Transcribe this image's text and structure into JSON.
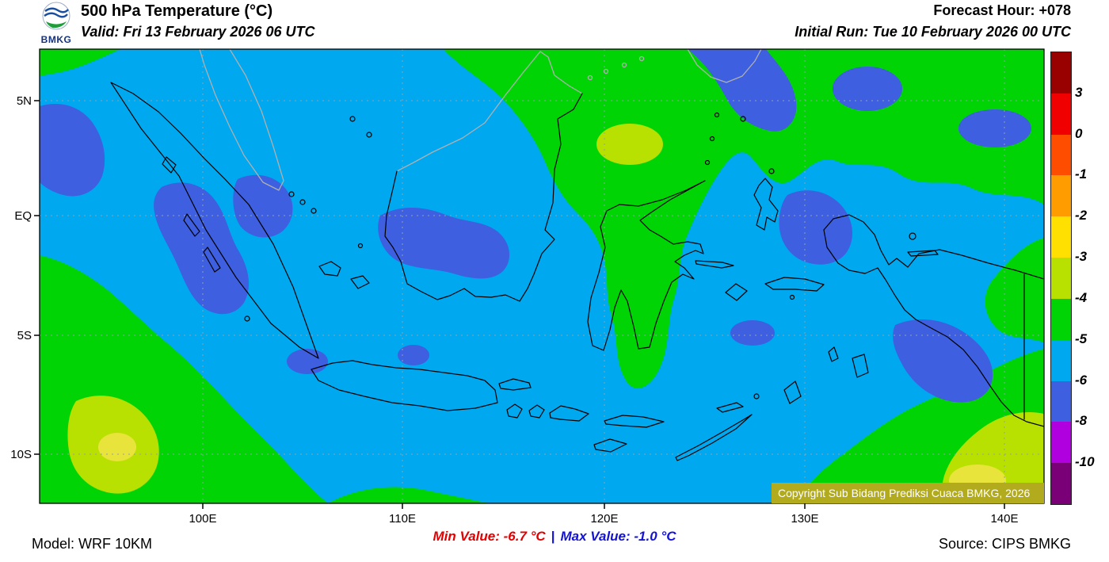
{
  "header": {
    "logo_text": "BMKG",
    "title": "500 hPa Temperature (°C)",
    "valid": "Valid: Fri 13 February 2026 06 UTC",
    "forecast_hour": "Forecast Hour: +078",
    "initial_run": "Initial Run: Tue 10 February 2026 00 UTC"
  },
  "map": {
    "lat_labels": [
      "5N",
      "EQ",
      "5S",
      "10S"
    ],
    "lon_labels": [
      "100E",
      "110E",
      "120E",
      "130E",
      "140E"
    ],
    "copyright": "Copyright Sub Bidang Prediksi Cuaca BMKG, 2026"
  },
  "colorbar": {
    "ticks": [
      "3",
      "0",
      "-1",
      "-2",
      "-3",
      "-4",
      "-5",
      "-6",
      "-8",
      "-10"
    ],
    "colors": [
      "#990000",
      "#f00000",
      "#ff4d00",
      "#ff9c00",
      "#ffe000",
      "#b8e000",
      "#00d405",
      "#00a8ef",
      "#3d5fe0",
      "#b000e0",
      "#7a0078"
    ]
  },
  "palette": {
    "base": "#00a8ef",
    "green": "#00d405",
    "yellow_green": "#b8e000",
    "yellow": "#e9e43c",
    "blue": "#3d5fe0",
    "grid": "#93a0ac",
    "coast": "#000000",
    "foreign_coast": "#b0b0b0",
    "copyright_bg": "#b3ab1e"
  },
  "footer": {
    "model": "Model: WRF 10KM",
    "min_label": "Min Value: -6.7 °C",
    "separator": "|",
    "max_label": "Max Value: -1.0 °C",
    "source": "Source: CIPS BMKG"
  },
  "chart_data": {
    "type": "heatmap",
    "title": "500 hPa Temperature (°C)",
    "x_ticks": [
      "100E",
      "110E",
      "120E",
      "130E",
      "140E"
    ],
    "y_ticks": [
      "5N",
      "EQ",
      "5S",
      "10S"
    ],
    "scale_levels_c": [
      3,
      0,
      -1,
      -2,
      -3,
      -4,
      -5,
      -6,
      -8,
      -10
    ],
    "min_value_c": -6.7,
    "max_value_c": -1.0,
    "legend_position": "right",
    "notes": "Filled temperature field over Indonesia; dominant values -4 to -6 C (green to blue), coldest pockets -6 to -8 C (royal blue), warmest patches -2 to -3 C (yellow)."
  }
}
